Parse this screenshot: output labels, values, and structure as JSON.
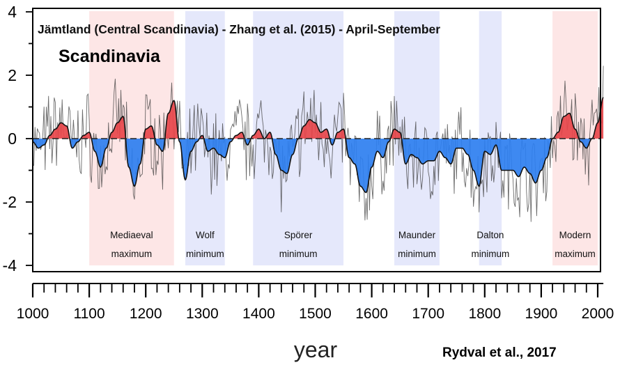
{
  "chart_data": {
    "type": "area",
    "title": "Jämtland (Central Scandinavia) - Zhang et al. (2015) - April-September",
    "region_label": "Scandinavia",
    "xlabel": "year",
    "ylabel": "",
    "credit": "Rydval et al., 2017",
    "xlim": [
      1000,
      2010
    ],
    "ylim": [
      -4,
      4
    ],
    "x_ticks": [
      1000,
      1100,
      1200,
      1300,
      1400,
      1500,
      1600,
      1700,
      1800,
      1900,
      2000
    ],
    "x_tick_labels": [
      "1000",
      "1100",
      "1200",
      "1300",
      "1400",
      "1500",
      "1600",
      "1700",
      "1800",
      "1900",
      "2000"
    ],
    "y_ticks": [
      4,
      2,
      0,
      -2,
      -4
    ],
    "y_tick_labels": [
      "4",
      "2",
      "0",
      "-2",
      "-4"
    ],
    "baseline": 0,
    "periods": [
      {
        "name": "Mediaeval maximum",
        "line1": "Mediaeval",
        "line2": "maximum",
        "start": 1100,
        "end": 1250,
        "kind": "warm"
      },
      {
        "name": "Wolf minimum",
        "line1": "Wolf",
        "line2": "minimum",
        "start": 1270,
        "end": 1340,
        "kind": "cold"
      },
      {
        "name": "Spörer minimum",
        "line1": "Spörer",
        "line2": "minimum",
        "start": 1390,
        "end": 1550,
        "kind": "cold"
      },
      {
        "name": "Maunder minimum",
        "line1": "Maunder",
        "line2": "minimum",
        "start": 1640,
        "end": 1720,
        "kind": "cold"
      },
      {
        "name": "Dalton minimum",
        "line1": "Dalton",
        "line2": "minimum",
        "start": 1790,
        "end": 1830,
        "kind": "cold"
      },
      {
        "name": "Modern maximum",
        "line1": "Modern",
        "line2": "maximum",
        "start": 1920,
        "end": 2000,
        "kind": "warm"
      }
    ],
    "smoothed_series": {
      "x": [
        1000,
        1010,
        1020,
        1030,
        1040,
        1050,
        1060,
        1070,
        1080,
        1090,
        1100,
        1110,
        1120,
        1130,
        1140,
        1150,
        1160,
        1170,
        1180,
        1190,
        1200,
        1210,
        1220,
        1230,
        1240,
        1250,
        1260,
        1270,
        1280,
        1290,
        1300,
        1310,
        1320,
        1330,
        1340,
        1350,
        1360,
        1370,
        1380,
        1390,
        1400,
        1410,
        1420,
        1430,
        1440,
        1450,
        1460,
        1470,
        1480,
        1490,
        1500,
        1510,
        1520,
        1530,
        1540,
        1550,
        1560,
        1570,
        1580,
        1590,
        1600,
        1610,
        1620,
        1630,
        1640,
        1650,
        1660,
        1670,
        1680,
        1690,
        1700,
        1710,
        1720,
        1730,
        1740,
        1750,
        1760,
        1770,
        1780,
        1790,
        1800,
        1810,
        1820,
        1830,
        1840,
        1850,
        1860,
        1870,
        1880,
        1890,
        1900,
        1910,
        1920,
        1930,
        1940,
        1950,
        1960,
        1970,
        1980,
        1990,
        2000,
        2010
      ],
      "y": [
        -0.1,
        -0.3,
        -0.2,
        0.1,
        0.3,
        0.5,
        0.4,
        -0.3,
        -0.1,
        0.1,
        0.2,
        -0.4,
        -0.9,
        -0.3,
        0.2,
        0.5,
        0.7,
        -0.9,
        -1.5,
        -0.8,
        0.3,
        0.4,
        -0.2,
        -0.4,
        0.8,
        1.2,
        -0.1,
        -1.3,
        -0.4,
        -0.1,
        0.1,
        -0.4,
        -0.3,
        -0.5,
        -0.6,
        -0.1,
        0.1,
        0.2,
        -0.2,
        0.1,
        0.3,
        0.0,
        0.2,
        -0.5,
        -1.0,
        -1.1,
        -0.5,
        0.0,
        0.4,
        0.6,
        0.5,
        0.2,
        0.3,
        -0.2,
        0.2,
        0.3,
        -0.6,
        -0.8,
        -1.5,
        -1.7,
        -0.9,
        -0.4,
        -0.6,
        -0.1,
        0.3,
        0.2,
        -0.8,
        -0.5,
        -0.6,
        -0.8,
        -0.7,
        -0.7,
        -0.4,
        -0.6,
        -0.8,
        -0.3,
        -0.3,
        -0.5,
        -1.0,
        -1.5,
        -0.4,
        -0.5,
        -0.2,
        -1.0,
        -1.0,
        -1.0,
        -1.2,
        -0.9,
        -1.1,
        -1.4,
        -1.0,
        -0.6,
        0.0,
        0.2,
        0.7,
        0.8,
        0.3,
        -0.1,
        -0.3,
        0.0,
        0.5,
        1.3
      ]
    },
    "annual_series_description_free": true,
    "colors": {
      "warm_fill": "#e8474b",
      "cold_fill": "#2e7ff0",
      "warm_band": "#fde6e6",
      "cold_band": "#e5e8fb",
      "annual_line": "#3a3a3a",
      "smoothed_line": "#111111",
      "axis": "#000000"
    },
    "grid": false
  }
}
